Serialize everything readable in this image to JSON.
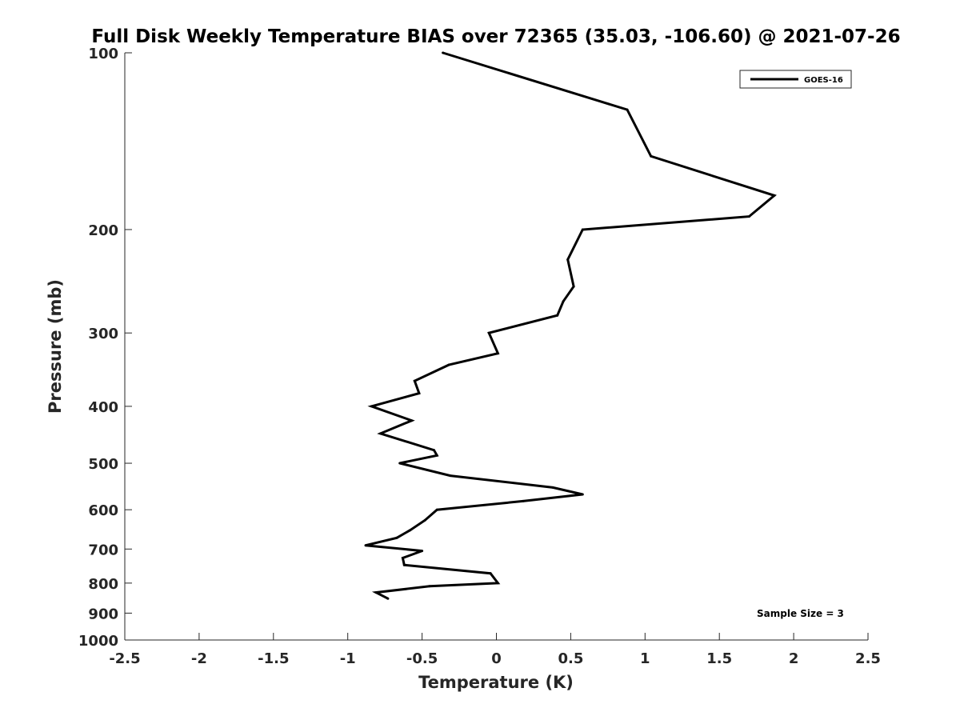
{
  "chart_data": {
    "type": "line",
    "title": "Full Disk Weekly Temperature BIAS over 72365 (35.03, -106.60) @ 2021-07-26",
    "xlabel": "Temperature (K)",
    "ylabel": "Pressure (mb)",
    "xlim": [
      -2.5,
      2.5
    ],
    "ylim": [
      100,
      1000
    ],
    "y_scale": "log",
    "y_reversed": true,
    "grid": false,
    "legend_position": "top-right",
    "x_ticks": [
      {
        "value": -2.5,
        "label": "-2.5"
      },
      {
        "value": -2,
        "label": "-2"
      },
      {
        "value": -1.5,
        "label": "-1.5"
      },
      {
        "value": -1,
        "label": "-1"
      },
      {
        "value": -0.5,
        "label": "-0.5"
      },
      {
        "value": 0,
        "label": "0"
      },
      {
        "value": 0.5,
        "label": "0.5"
      },
      {
        "value": 1,
        "label": "1"
      },
      {
        "value": 1.5,
        "label": "1.5"
      },
      {
        "value": 2,
        "label": "2"
      },
      {
        "value": 2.5,
        "label": "2.5"
      }
    ],
    "y_ticks": [
      {
        "value": 100,
        "label": "100"
      },
      {
        "value": 200,
        "label": "200"
      },
      {
        "value": 300,
        "label": "300"
      },
      {
        "value": 400,
        "label": "400"
      },
      {
        "value": 500,
        "label": "500"
      },
      {
        "value": 600,
        "label": "600"
      },
      {
        "value": 700,
        "label": "700"
      },
      {
        "value": 800,
        "label": "800"
      },
      {
        "value": 900,
        "label": "900"
      },
      {
        "value": 1000,
        "label": "1000"
      }
    ],
    "series": [
      {
        "name": "GOES-16",
        "color": "#000000",
        "points": [
          {
            "t": -0.36,
            "p": 100
          },
          {
            "t": 0.88,
            "p": 125
          },
          {
            "t": 1.04,
            "p": 150
          },
          {
            "t": 1.87,
            "p": 175
          },
          {
            "t": 1.7,
            "p": 190
          },
          {
            "t": 0.58,
            "p": 200
          },
          {
            "t": 0.48,
            "p": 225
          },
          {
            "t": 0.52,
            "p": 250
          },
          {
            "t": 0.45,
            "p": 265
          },
          {
            "t": 0.41,
            "p": 280
          },
          {
            "t": -0.05,
            "p": 300
          },
          {
            "t": 0.01,
            "p": 325
          },
          {
            "t": -0.32,
            "p": 340
          },
          {
            "t": -0.55,
            "p": 362
          },
          {
            "t": -0.52,
            "p": 380
          },
          {
            "t": -0.84,
            "p": 400
          },
          {
            "t": -0.57,
            "p": 423
          },
          {
            "t": -0.78,
            "p": 445
          },
          {
            "t": -0.42,
            "p": 475
          },
          {
            "t": -0.4,
            "p": 485
          },
          {
            "t": -0.65,
            "p": 500
          },
          {
            "t": -0.31,
            "p": 525
          },
          {
            "t": 0.38,
            "p": 550
          },
          {
            "t": 0.58,
            "p": 565
          },
          {
            "t": 0.18,
            "p": 580
          },
          {
            "t": -0.4,
            "p": 600
          },
          {
            "t": -0.48,
            "p": 625
          },
          {
            "t": -0.58,
            "p": 650
          },
          {
            "t": -0.67,
            "p": 670
          },
          {
            "t": -0.88,
            "p": 690
          },
          {
            "t": -0.5,
            "p": 705
          },
          {
            "t": -0.63,
            "p": 725
          },
          {
            "t": -0.62,
            "p": 745
          },
          {
            "t": -0.04,
            "p": 770
          },
          {
            "t": 0.01,
            "p": 800
          },
          {
            "t": -0.45,
            "p": 810
          },
          {
            "t": -0.81,
            "p": 830
          },
          {
            "t": -0.73,
            "p": 850
          }
        ]
      }
    ],
    "legend": [
      {
        "label": "GOES-16",
        "color": "#000000"
      }
    ],
    "annotations": [
      {
        "text": "Sample Size = 3",
        "position": "bottom-right"
      }
    ]
  }
}
